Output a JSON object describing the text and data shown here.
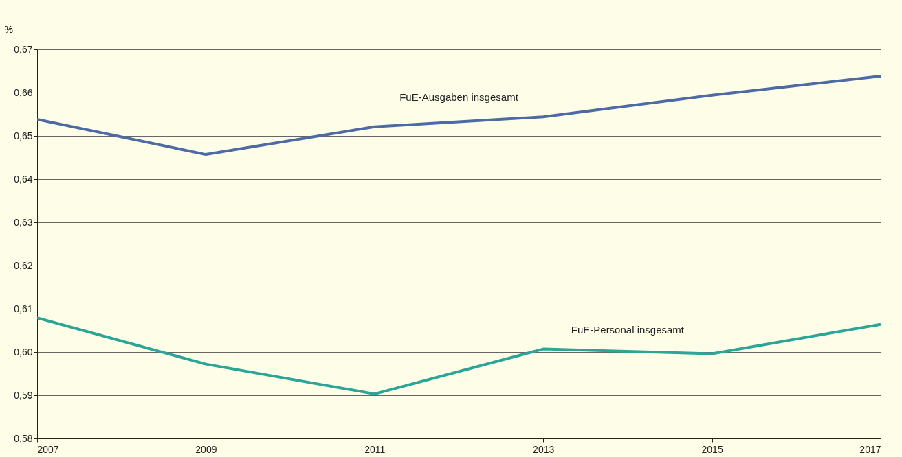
{
  "chart_data": {
    "type": "line",
    "ylabel": "%",
    "x": [
      2007,
      2009,
      2011,
      2013,
      2015,
      2017
    ],
    "series": [
      {
        "name": "FuE-Ausgaben insgesamt",
        "color": "#4e6aa4",
        "values": [
          0.6538,
          0.6457,
          0.6521,
          0.6544,
          0.6594,
          0.6638
        ]
      },
      {
        "name": "FuE-Personal insgesamt",
        "color": "#2aa596",
        "values": [
          0.6079,
          0.5972,
          0.5903,
          0.6007,
          0.5996,
          0.6064
        ]
      }
    ],
    "xlim": [
      2007,
      2017
    ],
    "xticks": [
      2007,
      2009,
      2011,
      2013,
      2015,
      2017
    ],
    "ylim": [
      0.58,
      0.67
    ],
    "yticks": [
      {
        "value": 0.58,
        "label": "0,58"
      },
      {
        "value": 0.59,
        "label": "0,59"
      },
      {
        "value": 0.6,
        "label": "0,60"
      },
      {
        "value": 0.61,
        "label": "0,61"
      },
      {
        "value": 0.62,
        "label": "0,62"
      },
      {
        "value": 0.63,
        "label": "0,63"
      },
      {
        "value": 0.64,
        "label": "0,64"
      },
      {
        "value": 0.65,
        "label": "0,65"
      },
      {
        "value": 0.66,
        "label": "0,66"
      },
      {
        "value": 0.67,
        "label": "0,67"
      }
    ],
    "grid": "y",
    "legend": false,
    "marker": "none",
    "line_style": "solid"
  }
}
